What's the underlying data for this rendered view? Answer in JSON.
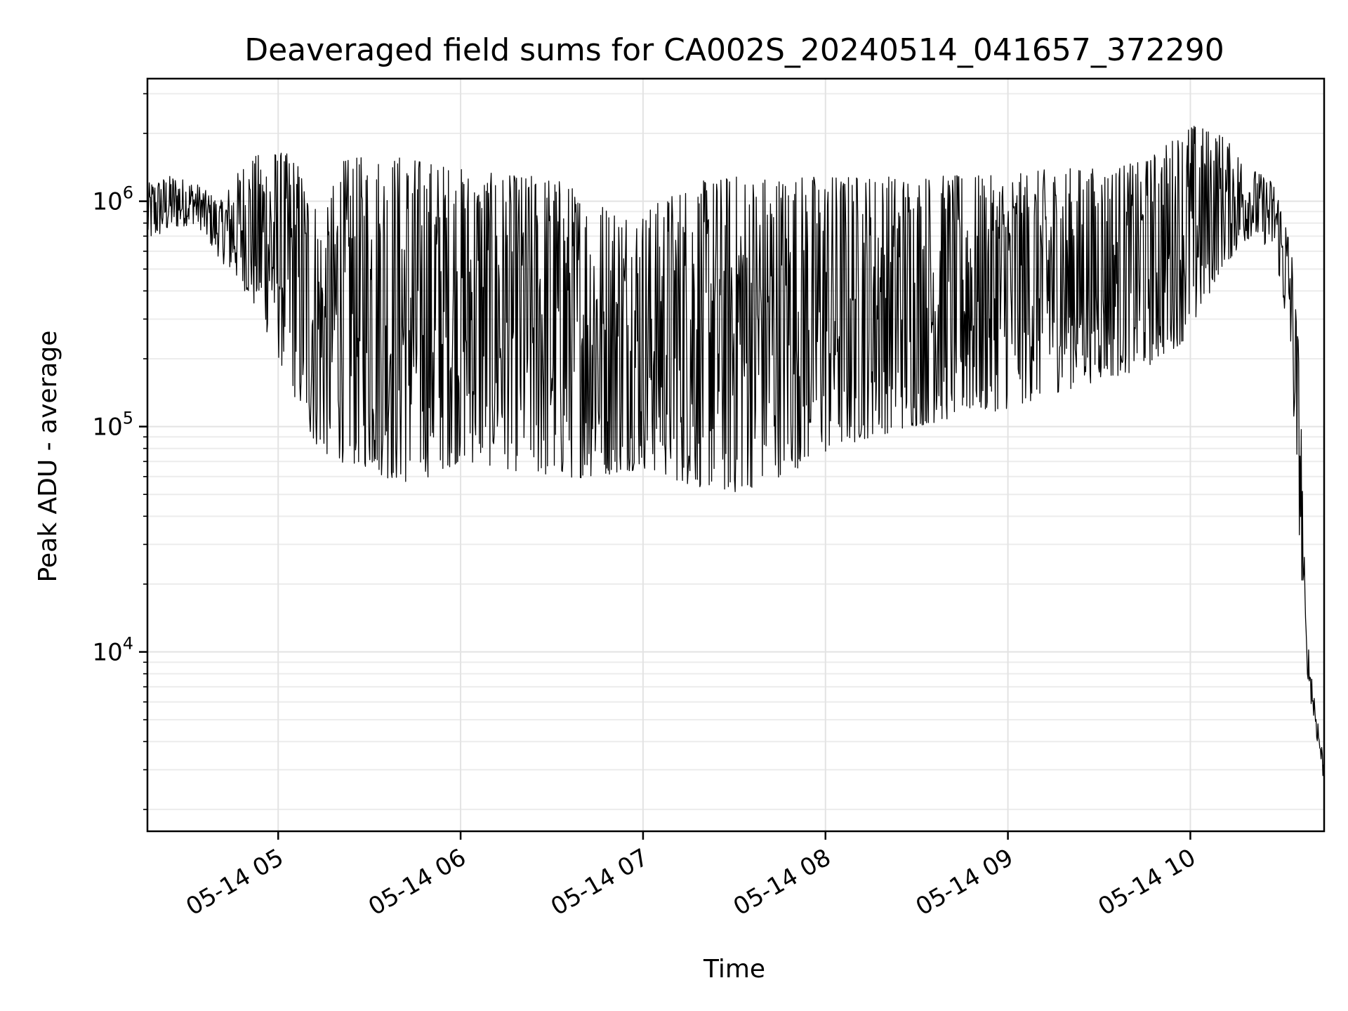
{
  "chart_data": {
    "type": "line",
    "title": "Deaveraged field sums for CA002S_20240514_041657_372290",
    "xlabel": "Time",
    "ylabel": "Peak ADU - average",
    "yscale": "log",
    "ylim": [
      1600,
      3500000
    ],
    "xlim": [
      "2024-05-14 04:17",
      "2024-05-14 10:44"
    ],
    "grid": true,
    "line_color": "#000000",
    "x_ticks": [
      {
        "t": "2024-05-14 05:00",
        "label": "05-14 05"
      },
      {
        "t": "2024-05-14 06:00",
        "label": "05-14 06"
      },
      {
        "t": "2024-05-14 07:00",
        "label": "05-14 07"
      },
      {
        "t": "2024-05-14 08:00",
        "label": "05-14 08"
      },
      {
        "t": "2024-05-14 09:00",
        "label": "05-14 09"
      },
      {
        "t": "2024-05-14 10:00",
        "label": "05-14 10"
      }
    ],
    "y_ticks": [
      {
        "value": 10000,
        "base": "10",
        "exp": "4"
      },
      {
        "value": 100000,
        "base": "10",
        "exp": "5"
      },
      {
        "value": 1000000,
        "base": "10",
        "exp": "6"
      }
    ],
    "series": [
      {
        "x": [
          "2024-05-14 04:17",
          "2024-05-14 04:25",
          "2024-05-14 04:33",
          "2024-05-14 04:41",
          "2024-05-14 04:49",
          "2024-05-14 04:57",
          "2024-05-14 05:05",
          "2024-05-14 05:10",
          "2024-05-14 05:15",
          "2024-05-14 05:20",
          "2024-05-14 05:30",
          "2024-05-14 05:40",
          "2024-05-14 05:50",
          "2024-05-14 06:00",
          "2024-05-14 06:15",
          "2024-05-14 06:30",
          "2024-05-14 06:45",
          "2024-05-14 07:00",
          "2024-05-14 07:15",
          "2024-05-14 07:30",
          "2024-05-14 07:45",
          "2024-05-14 08:00",
          "2024-05-14 08:15",
          "2024-05-14 08:30",
          "2024-05-14 08:45",
          "2024-05-14 09:00",
          "2024-05-14 09:15",
          "2024-05-14 09:30",
          "2024-05-14 09:45",
          "2024-05-14 10:00",
          "2024-05-14 10:10",
          "2024-05-14 10:20",
          "2024-05-14 10:28",
          "2024-05-14 10:33",
          "2024-05-14 10:36",
          "2024-05-14 10:38",
          "2024-05-14 10:40",
          "2024-05-14 10:42",
          "2024-05-14 10:44"
        ],
        "lo": [
          650000,
          750000,
          800000,
          550000,
          400000,
          250000,
          140000,
          90000,
          75000,
          70000,
          65000,
          55000,
          60000,
          70000,
          65000,
          58000,
          60000,
          65000,
          55000,
          50000,
          60000,
          75000,
          90000,
          100000,
          110000,
          120000,
          140000,
          160000,
          180000,
          250000,
          500000,
          700000,
          600000,
          200000,
          30000,
          9000,
          5500,
          3800,
          2600
        ],
        "hi": [
          1200000,
          1300000,
          1200000,
          1000000,
          1500000,
          1700000,
          1600000,
          1200000,
          800000,
          1500000,
          1600000,
          1600000,
          1500000,
          1400000,
          1300000,
          1300000,
          1000000,
          900000,
          1200000,
          1300000,
          1300000,
          1300000,
          1300000,
          1300000,
          1300000,
          1300000,
          1400000,
          1400000,
          1500000,
          2200000,
          2000000,
          1400000,
          1200000,
          700000,
          200000,
          13000,
          8000,
          5000,
          3200
        ],
        "spike_min": [
          0,
          0,
          0,
          0,
          0,
          0,
          0,
          0,
          0,
          0,
          0,
          0,
          0,
          0,
          0,
          0,
          0,
          0,
          0,
          0,
          0,
          0,
          0,
          0,
          0,
          0,
          0,
          0,
          0,
          0,
          0,
          0,
          0,
          0,
          0,
          0,
          0,
          0,
          0
        ]
      }
    ]
  }
}
